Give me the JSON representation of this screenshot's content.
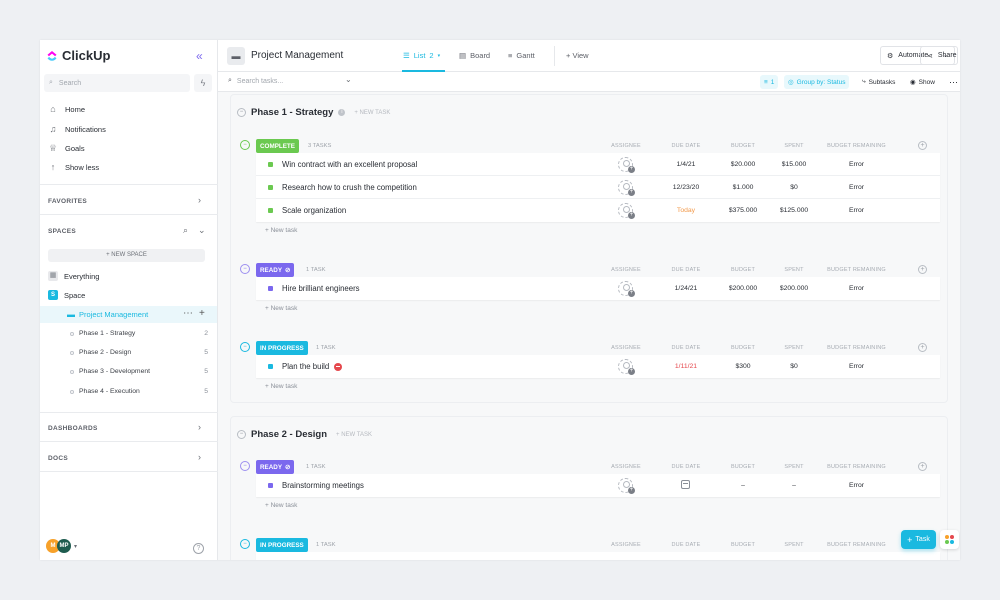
{
  "app": {
    "name": "ClickUp"
  },
  "sidebar": {
    "search_placeholder": "Search",
    "nav": [
      {
        "label": "Home",
        "icon": "home-icon"
      },
      {
        "label": "Notifications",
        "icon": "bell-icon"
      },
      {
        "label": "Goals",
        "icon": "trophy-icon"
      },
      {
        "label": "Show less",
        "icon": "arrow-up-icon"
      }
    ],
    "favorites_title": "FAVORITES",
    "spaces_title": "SPACES",
    "new_space": "+ NEW SPACE",
    "everything": "Everything",
    "space": {
      "badge": "S",
      "label": "Space"
    },
    "project": "Project Management",
    "phases": [
      {
        "label": "Phase 1 - Strategy",
        "count": "2"
      },
      {
        "label": "Phase 2 - Design",
        "count": "5"
      },
      {
        "label": "Phase 3 - Development",
        "count": "5"
      },
      {
        "label": "Phase 4 - Execution",
        "count": "5"
      }
    ],
    "dashboards_title": "DASHBOARDS",
    "docs_title": "DOCS",
    "avatars": [
      "M",
      "MP"
    ]
  },
  "header": {
    "title": "Project Management",
    "tabs": [
      {
        "label": "List",
        "badge": "2"
      },
      {
        "label": "Board"
      },
      {
        "label": "Gantt"
      },
      {
        "label": "+ View"
      }
    ],
    "automate": "Automate",
    "share": "Share"
  },
  "toolbar": {
    "search_placeholder": "Search tasks...",
    "filter_count": "1",
    "group_by": "Group by: Status",
    "subtasks": "Subtasks",
    "show": "Show"
  },
  "columns": [
    "ASSIGNEE",
    "DUE DATE",
    "BUDGET",
    "SPENT",
    "BUDGET REMAINING"
  ],
  "phases": [
    {
      "title": "Phase 1 - Strategy",
      "new_task": "+ NEW TASK",
      "groups": [
        {
          "status": "COMPLETE",
          "count": "3 TASKS",
          "tasks": [
            {
              "name": "Win contract with an excellent proposal",
              "due": "1/4/21",
              "budget": "$20.000",
              "spent": "$15.000",
              "remaining": "Error"
            },
            {
              "name": "Research how to crush the competition",
              "due": "12/23/20",
              "budget": "$1.000",
              "spent": "$0",
              "remaining": "Error"
            },
            {
              "name": "Scale organization",
              "due": "Today",
              "budget": "$375.000",
              "spent": "$125.000",
              "remaining": "Error"
            }
          ]
        },
        {
          "status": "READY",
          "count": "1 TASK",
          "tasks": [
            {
              "name": "Hire brilliant engineers",
              "due": "1/24/21",
              "budget": "$200.000",
              "spent": "$200.000",
              "remaining": "Error"
            }
          ]
        },
        {
          "status": "IN PROGRESS",
          "count": "1 TASK",
          "tasks": [
            {
              "name": "Plan the build",
              "due": "1/11/21",
              "budget": "$300",
              "spent": "$0",
              "remaining": "Error"
            }
          ]
        }
      ]
    },
    {
      "title": "Phase 2 - Design",
      "new_task": "+ NEW TASK",
      "groups": [
        {
          "status": "READY",
          "count": "1 TASK",
          "tasks": [
            {
              "name": "Brainstorming meetings",
              "due": "",
              "budget": "–",
              "spent": "–",
              "remaining": "Error"
            }
          ]
        },
        {
          "status": "IN PROGRESS",
          "count": "1 TASK",
          "tasks": []
        }
      ]
    }
  ],
  "new_task_link": "+ New task",
  "fab_label": "Task",
  "colors": {
    "accent": "#1ab9e0",
    "complete": "#6bc950",
    "ready": "#7b68ee",
    "in_progress": "#1ab9e0",
    "overdue": "#e5484d",
    "today": "#f2994a"
  }
}
